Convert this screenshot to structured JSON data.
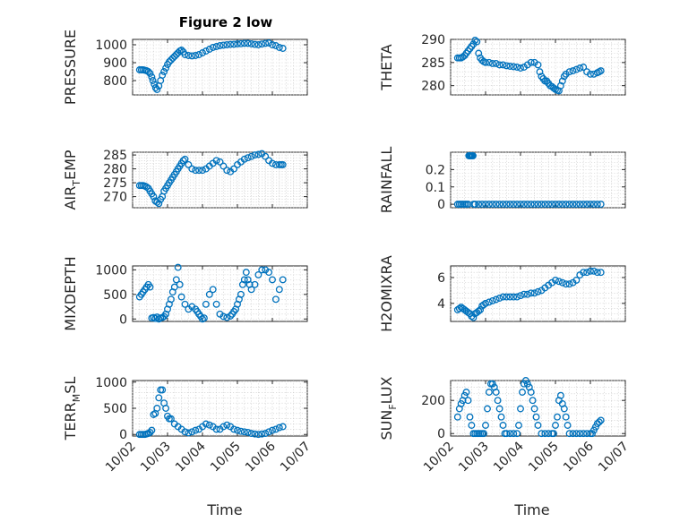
{
  "title": "Figure 2 low",
  "marker_color": "#0072BD",
  "x_ticks": [
    "10/02",
    "10/03",
    "10/04",
    "10/05",
    "10/06",
    "10/07"
  ],
  "x_label": "Time",
  "chart_data": [
    {
      "type": "scatter",
      "ylabel": "PRESSURE",
      "ylim": [
        720,
        1030
      ],
      "yticks": [
        800,
        900,
        1000
      ],
      "xlim": [
        0,
        5
      ],
      "grid": true,
      "x": [
        0.2,
        0.25,
        0.3,
        0.35,
        0.4,
        0.45,
        0.5,
        0.55,
        0.58,
        0.62,
        0.66,
        0.7,
        0.75,
        0.8,
        0.85,
        0.9,
        0.95,
        1.0,
        1.05,
        1.1,
        1.15,
        1.2,
        1.25,
        1.3,
        1.35,
        1.4,
        1.45,
        1.5,
        1.6,
        1.7,
        1.8,
        1.9,
        2.0,
        2.1,
        2.2,
        2.3,
        2.4,
        2.5,
        2.6,
        2.7,
        2.8,
        2.9,
        3.0,
        3.1,
        3.2,
        3.3,
        3.4,
        3.5,
        3.6,
        3.7,
        3.8,
        3.9,
        4.0,
        4.1,
        4.2,
        4.3
      ],
      "y": [
        860,
        860,
        860,
        858,
        855,
        850,
        840,
        820,
        800,
        780,
        760,
        750,
        770,
        800,
        830,
        850,
        870,
        890,
        905,
        915,
        925,
        935,
        945,
        955,
        965,
        970,
        960,
        945,
        940,
        938,
        940,
        945,
        955,
        965,
        975,
        985,
        990,
        995,
        998,
        1000,
        1002,
        1003,
        1005,
        1006,
        1008,
        1008,
        1005,
        1002,
        1000,
        1004,
        1008,
        1010,
        1000,
        995,
        985,
        980
      ]
    },
    {
      "type": "scatter",
      "ylabel": "THETA",
      "ylim": [
        278,
        290
      ],
      "yticks": [
        280,
        285,
        290
      ],
      "xlim": [
        0,
        5
      ],
      "grid": true,
      "x": [
        0.2,
        0.25,
        0.3,
        0.35,
        0.4,
        0.45,
        0.5,
        0.55,
        0.6,
        0.65,
        0.7,
        0.75,
        0.8,
        0.85,
        0.9,
        0.95,
        1.0,
        1.1,
        1.2,
        1.3,
        1.4,
        1.5,
        1.6,
        1.7,
        1.8,
        1.9,
        2.0,
        2.1,
        2.2,
        2.3,
        2.4,
        2.5,
        2.55,
        2.6,
        2.65,
        2.7,
        2.75,
        2.8,
        2.85,
        2.9,
        2.95,
        3.0,
        3.05,
        3.1,
        3.15,
        3.2,
        3.25,
        3.3,
        3.4,
        3.5,
        3.6,
        3.7,
        3.8,
        3.9,
        4.0,
        4.1,
        4.2,
        4.25,
        4.3
      ],
      "y": [
        286,
        286,
        286,
        286.2,
        286.5,
        287,
        287.5,
        288,
        288.5,
        289,
        289.8,
        289.5,
        287,
        286,
        285.5,
        285.2,
        285,
        285,
        284.8,
        284.8,
        284.5,
        284.5,
        284.3,
        284.2,
        284.1,
        284,
        283.8,
        284,
        284.5,
        285,
        285,
        284.5,
        283,
        282,
        281.5,
        281,
        281,
        280.5,
        280,
        279.8,
        279.5,
        279.2,
        279,
        278.9,
        280,
        281,
        282,
        282.5,
        283,
        283.2,
        283.5,
        283.8,
        284,
        283,
        282.5,
        282.5,
        282.8,
        283,
        283.2
      ]
    },
    {
      "type": "scatter",
      "ylabel": "AIR_TEMP",
      "ylim": [
        266,
        286
      ],
      "yticks": [
        270,
        275,
        280,
        285
      ],
      "xlim": [
        0,
        5
      ],
      "grid": true,
      "x": [
        0.2,
        0.25,
        0.3,
        0.35,
        0.4,
        0.45,
        0.5,
        0.55,
        0.6,
        0.65,
        0.7,
        0.75,
        0.8,
        0.85,
        0.9,
        0.95,
        1.0,
        1.05,
        1.1,
        1.15,
        1.2,
        1.25,
        1.3,
        1.35,
        1.4,
        1.45,
        1.5,
        1.6,
        1.7,
        1.8,
        1.9,
        2.0,
        2.1,
        2.2,
        2.3,
        2.4,
        2.5,
        2.6,
        2.7,
        2.8,
        2.9,
        3.0,
        3.1,
        3.2,
        3.3,
        3.4,
        3.5,
        3.6,
        3.7,
        3.8,
        3.9,
        4.0,
        4.1,
        4.2,
        4.25,
        4.3
      ],
      "y": [
        274,
        274,
        274,
        273.8,
        273.5,
        273,
        272,
        271,
        270,
        268.5,
        268,
        267.5,
        269,
        270,
        272,
        273,
        274,
        275,
        276,
        277,
        278,
        279,
        280,
        281,
        282,
        283,
        283.5,
        281.5,
        280,
        279.5,
        279.5,
        279.5,
        280,
        281,
        282,
        283,
        282.5,
        281,
        279.5,
        279,
        280,
        281.5,
        282.5,
        283.5,
        284,
        284.5,
        285,
        285.2,
        285.5,
        284.5,
        283,
        282,
        281.5,
        281.5,
        281.5,
        281.5
      ]
    },
    {
      "type": "scatter",
      "ylabel": "RAINFALL",
      "ylim": [
        -0.02,
        0.3
      ],
      "yticks": [
        0,
        0.1,
        0.2
      ],
      "xlim": [
        0,
        5
      ],
      "grid": true,
      "x": [
        0.2,
        0.25,
        0.3,
        0.35,
        0.4,
        0.45,
        0.5,
        0.52,
        0.54,
        0.56,
        0.58,
        0.6,
        0.62,
        0.64,
        0.66,
        0.7,
        0.8,
        0.9,
        1.0,
        1.1,
        1.2,
        1.3,
        1.4,
        1.5,
        1.6,
        1.7,
        1.8,
        1.9,
        2.0,
        2.1,
        2.2,
        2.3,
        2.4,
        2.5,
        2.6,
        2.7,
        2.8,
        2.9,
        3.0,
        3.1,
        3.2,
        3.3,
        3.4,
        3.5,
        3.6,
        3.7,
        3.8,
        3.9,
        4.0,
        4.1,
        4.2,
        4.3
      ],
      "y": [
        0,
        0,
        0,
        0,
        0,
        0,
        0,
        0.28,
        0.28,
        0.28,
        0.28,
        0.28,
        0.28,
        0.28,
        0,
        0,
        0,
        0,
        0,
        0,
        0,
        0,
        0,
        0,
        0,
        0,
        0,
        0,
        0,
        0,
        0,
        0,
        0,
        0,
        0,
        0,
        0,
        0,
        0,
        0,
        0,
        0,
        0,
        0,
        0,
        0,
        0,
        0,
        0,
        0,
        0,
        0
      ]
    },
    {
      "type": "scatter",
      "ylabel": "MIXDEPTH",
      "ylim": [
        -50,
        1080
      ],
      "yticks": [
        0,
        500,
        1000
      ],
      "xlim": [
        0,
        5
      ],
      "grid": true,
      "x": [
        0.2,
        0.25,
        0.3,
        0.35,
        0.4,
        0.45,
        0.5,
        0.55,
        0.6,
        0.65,
        0.7,
        0.75,
        0.8,
        0.85,
        0.9,
        0.95,
        1.0,
        1.05,
        1.1,
        1.15,
        1.2,
        1.25,
        1.3,
        1.35,
        1.4,
        1.5,
        1.6,
        1.7,
        1.8,
        1.85,
        1.9,
        1.95,
        2.0,
        2.05,
        2.1,
        2.2,
        2.3,
        2.4,
        2.5,
        2.6,
        2.7,
        2.8,
        2.85,
        2.9,
        2.95,
        3.0,
        3.05,
        3.1,
        3.15,
        3.2,
        3.25,
        3.3,
        3.35,
        3.4,
        3.5,
        3.6,
        3.7,
        3.8,
        3.9,
        4.0,
        4.1,
        4.2,
        4.3
      ],
      "y": [
        450,
        500,
        550,
        600,
        650,
        700,
        650,
        20,
        30,
        10,
        40,
        0,
        20,
        30,
        50,
        100,
        200,
        300,
        400,
        550,
        650,
        800,
        1050,
        700,
        450,
        300,
        200,
        250,
        200,
        150,
        100,
        50,
        0,
        20,
        300,
        500,
        600,
        300,
        100,
        50,
        30,
        60,
        100,
        150,
        200,
        300,
        400,
        500,
        700,
        800,
        950,
        800,
        700,
        600,
        700,
        900,
        1000,
        1000,
        950,
        800,
        400,
        600,
        800
      ]
    },
    {
      "type": "scatter",
      "ylabel": "H2OMIXRA",
      "ylim": [
        2.6,
        6.9
      ],
      "yticks": [
        4,
        6
      ],
      "xlim": [
        0,
        5
      ],
      "grid": true,
      "x": [
        0.2,
        0.25,
        0.3,
        0.35,
        0.4,
        0.45,
        0.5,
        0.55,
        0.6,
        0.65,
        0.7,
        0.75,
        0.8,
        0.85,
        0.9,
        0.95,
        1.0,
        1.1,
        1.2,
        1.3,
        1.4,
        1.5,
        1.6,
        1.7,
        1.8,
        1.9,
        2.0,
        2.1,
        2.2,
        2.3,
        2.4,
        2.5,
        2.6,
        2.7,
        2.8,
        2.9,
        3.0,
        3.1,
        3.2,
        3.3,
        3.4,
        3.5,
        3.6,
        3.7,
        3.8,
        3.9,
        4.0,
        4.1,
        4.2,
        4.3
      ],
      "y": [
        3.5,
        3.6,
        3.7,
        3.6,
        3.5,
        3.4,
        3.3,
        3.2,
        3.0,
        2.9,
        3.2,
        3.3,
        3.4,
        3.5,
        3.8,
        3.9,
        4.0,
        4.1,
        4.2,
        4.3,
        4.4,
        4.5,
        4.5,
        4.5,
        4.5,
        4.5,
        4.6,
        4.7,
        4.7,
        4.8,
        4.8,
        4.9,
        5.0,
        5.2,
        5.4,
        5.6,
        5.8,
        5.7,
        5.6,
        5.5,
        5.5,
        5.6,
        5.8,
        6.2,
        6.4,
        6.4,
        6.5,
        6.5,
        6.4,
        6.4
      ]
    },
    {
      "type": "scatter",
      "ylabel": "TERR_MSL",
      "ylim": [
        -30,
        1030
      ],
      "yticks": [
        0,
        500,
        1000
      ],
      "xlim": [
        0,
        5
      ],
      "grid": true,
      "x": [
        0.2,
        0.25,
        0.3,
        0.35,
        0.4,
        0.45,
        0.5,
        0.55,
        0.6,
        0.65,
        0.7,
        0.75,
        0.8,
        0.85,
        0.9,
        0.95,
        1.0,
        1.05,
        1.1,
        1.2,
        1.3,
        1.4,
        1.5,
        1.6,
        1.7,
        1.8,
        1.9,
        2.0,
        2.1,
        2.2,
        2.3,
        2.4,
        2.5,
        2.6,
        2.7,
        2.8,
        2.9,
        3.0,
        3.1,
        3.2,
        3.3,
        3.4,
        3.5,
        3.6,
        3.7,
        3.8,
        3.9,
        4.0,
        4.1,
        4.2,
        4.3
      ],
      "y": [
        0,
        0,
        0,
        0,
        10,
        20,
        40,
        80,
        380,
        400,
        500,
        700,
        850,
        850,
        600,
        500,
        350,
        300,
        300,
        200,
        150,
        100,
        50,
        30,
        50,
        80,
        100,
        150,
        200,
        180,
        150,
        100,
        100,
        150,
        180,
        150,
        100,
        80,
        60,
        50,
        40,
        20,
        10,
        0,
        10,
        20,
        50,
        80,
        100,
        130,
        150
      ]
    },
    {
      "type": "scatter",
      "ylabel": "SUN_FLUX",
      "ylim": [
        -15,
        320
      ],
      "yticks": [
        0,
        200
      ],
      "xlim": [
        0,
        5
      ],
      "grid": true,
      "x": [
        0.2,
        0.25,
        0.3,
        0.35,
        0.4,
        0.45,
        0.5,
        0.55,
        0.6,
        0.65,
        0.7,
        0.75,
        0.8,
        0.85,
        0.9,
        0.95,
        1.0,
        1.05,
        1.1,
        1.15,
        1.2,
        1.25,
        1.3,
        1.35,
        1.4,
        1.45,
        1.5,
        1.55,
        1.6,
        1.7,
        1.8,
        1.9,
        1.95,
        2.0,
        2.05,
        2.1,
        2.15,
        2.2,
        2.25,
        2.3,
        2.35,
        2.4,
        2.45,
        2.5,
        2.6,
        2.7,
        2.8,
        2.9,
        2.95,
        3.0,
        3.05,
        3.1,
        3.15,
        3.2,
        3.25,
        3.3,
        3.35,
        3.4,
        3.5,
        3.6,
        3.7,
        3.8,
        3.9,
        4.0,
        4.05,
        4.1,
        4.15,
        4.2,
        4.25,
        4.3
      ],
      "y": [
        100,
        150,
        180,
        200,
        230,
        250,
        200,
        100,
        50,
        0,
        0,
        0,
        0,
        0,
        0,
        0,
        50,
        150,
        250,
        300,
        300,
        280,
        250,
        200,
        150,
        100,
        50,
        0,
        0,
        0,
        0,
        0,
        50,
        150,
        250,
        300,
        320,
        300,
        280,
        250,
        200,
        150,
        100,
        50,
        0,
        0,
        0,
        0,
        0,
        50,
        100,
        200,
        230,
        180,
        150,
        100,
        50,
        0,
        0,
        0,
        0,
        0,
        0,
        0,
        0,
        20,
        40,
        60,
        70,
        80
      ]
    }
  ]
}
